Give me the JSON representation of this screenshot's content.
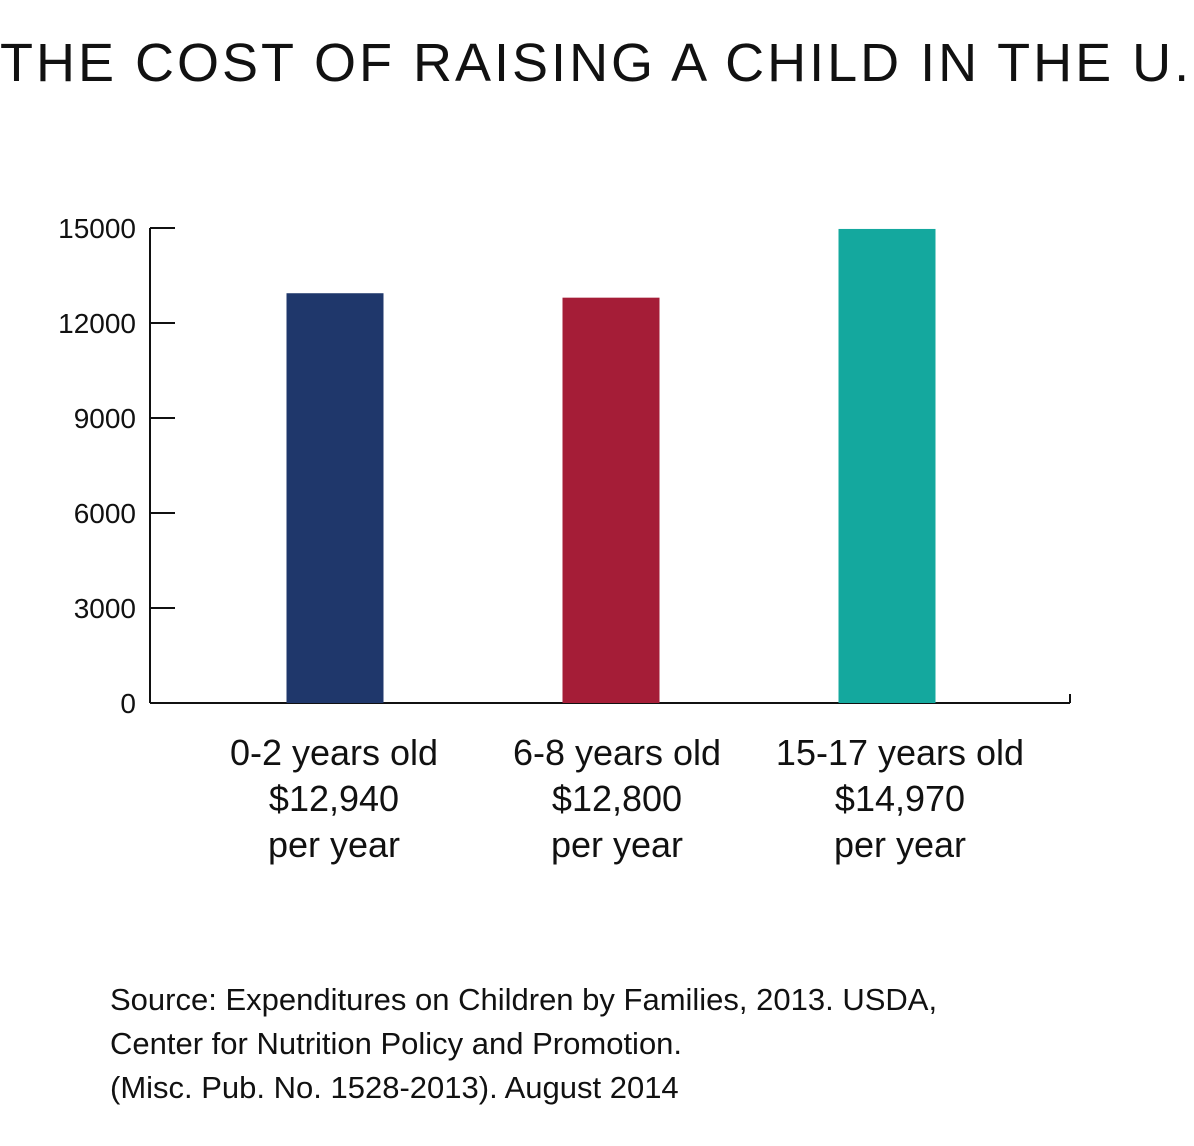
{
  "chart_data": {
    "type": "bar",
    "title": "THE COST OF RAISING A CHILD IN THE U.S.",
    "categories": [
      "0-2 years old",
      "6-8 years old",
      "15-17 years old"
    ],
    "values": [
      12940,
      12800,
      14970
    ],
    "value_labels": [
      "$12,940",
      "$12,800",
      "$14,970"
    ],
    "unit_label": "per year",
    "colors": [
      "#1f376b",
      "#a51d37",
      "#14a89e"
    ],
    "yticks": [
      "0",
      "3000",
      "6000",
      "9000",
      "12000",
      "15000"
    ],
    "ylim": [
      0,
      15000
    ],
    "xlabel": "",
    "ylabel": "",
    "grid": false
  },
  "source": {
    "line1": "Source: Expenditures on Children by Families, 2013. USDA,",
    "line2": "Center for Nutrition Policy and Promotion.",
    "line3": "(Misc. Pub. No. 1528-2013). August 2014"
  }
}
